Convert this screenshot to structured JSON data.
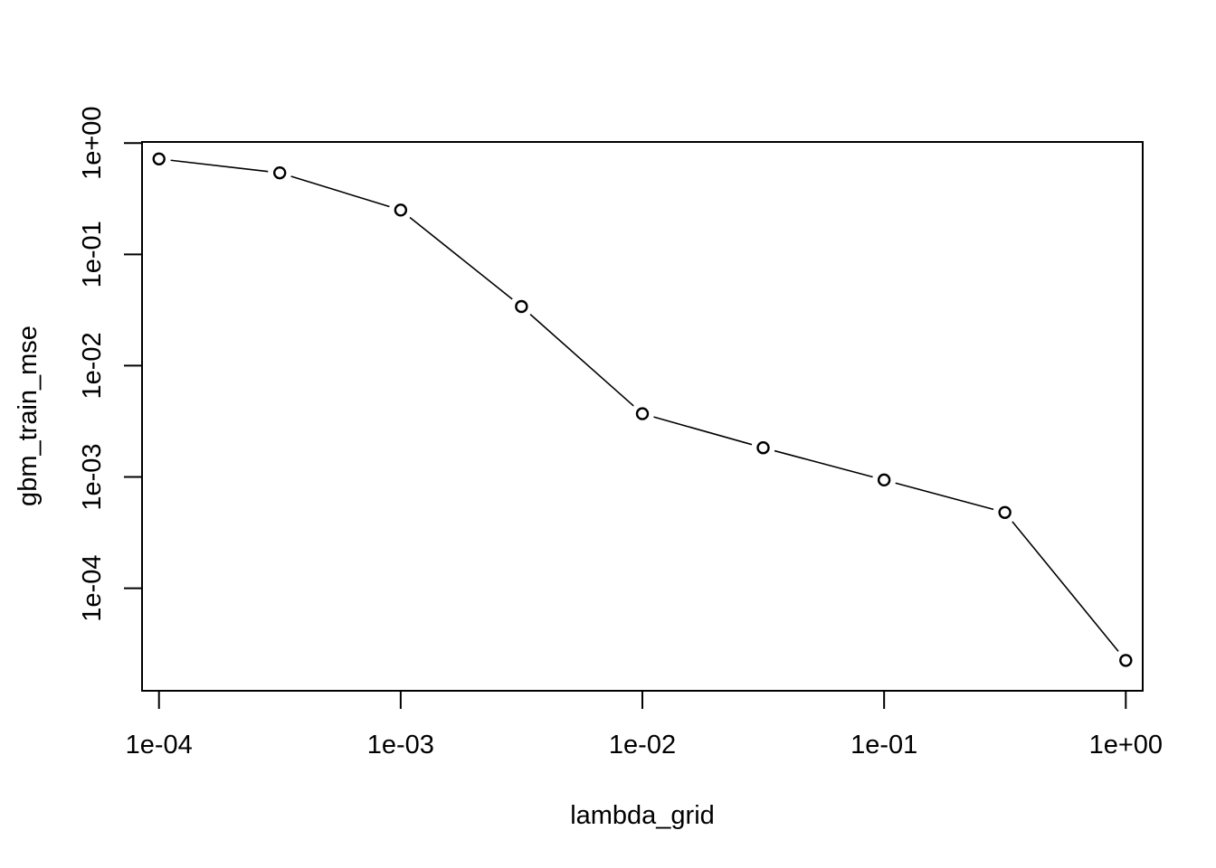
{
  "chart_data": {
    "type": "line",
    "title": "",
    "xlabel": "lambda_grid",
    "ylabel": "gbm_train_mse",
    "x_scale": "log10",
    "y_scale": "log10",
    "xlim": [
      8.51e-05,
      1.1749
    ],
    "ylim": [
      1.2e-05,
      1.023
    ],
    "x_ticks": [
      {
        "value": 0.0001,
        "label": "1e-04"
      },
      {
        "value": 0.001,
        "label": "1e-03"
      },
      {
        "value": 0.01,
        "label": "1e-02"
      },
      {
        "value": 0.1,
        "label": "1e-01"
      },
      {
        "value": 1,
        "label": "1e+00"
      }
    ],
    "y_ticks": [
      {
        "value": 1,
        "label": "1e+00"
      },
      {
        "value": 0.1,
        "label": "1e-01"
      },
      {
        "value": 0.01,
        "label": "1e-02"
      },
      {
        "value": 0.001,
        "label": "1e-03"
      },
      {
        "value": 0.0001,
        "label": "1e-04"
      }
    ],
    "x": [
      0.0001,
      0.000316,
      0.001,
      0.00316,
      0.01,
      0.0316,
      0.1,
      0.316,
      1
    ],
    "series": [
      {
        "name": "gbm_train_mse",
        "values": [
          0.72,
          0.54,
          0.25,
          0.034,
          0.0037,
          0.00183,
          0.00094,
          0.00048,
          2.25e-05
        ]
      }
    ],
    "markers": "open-circle",
    "grid": false
  }
}
